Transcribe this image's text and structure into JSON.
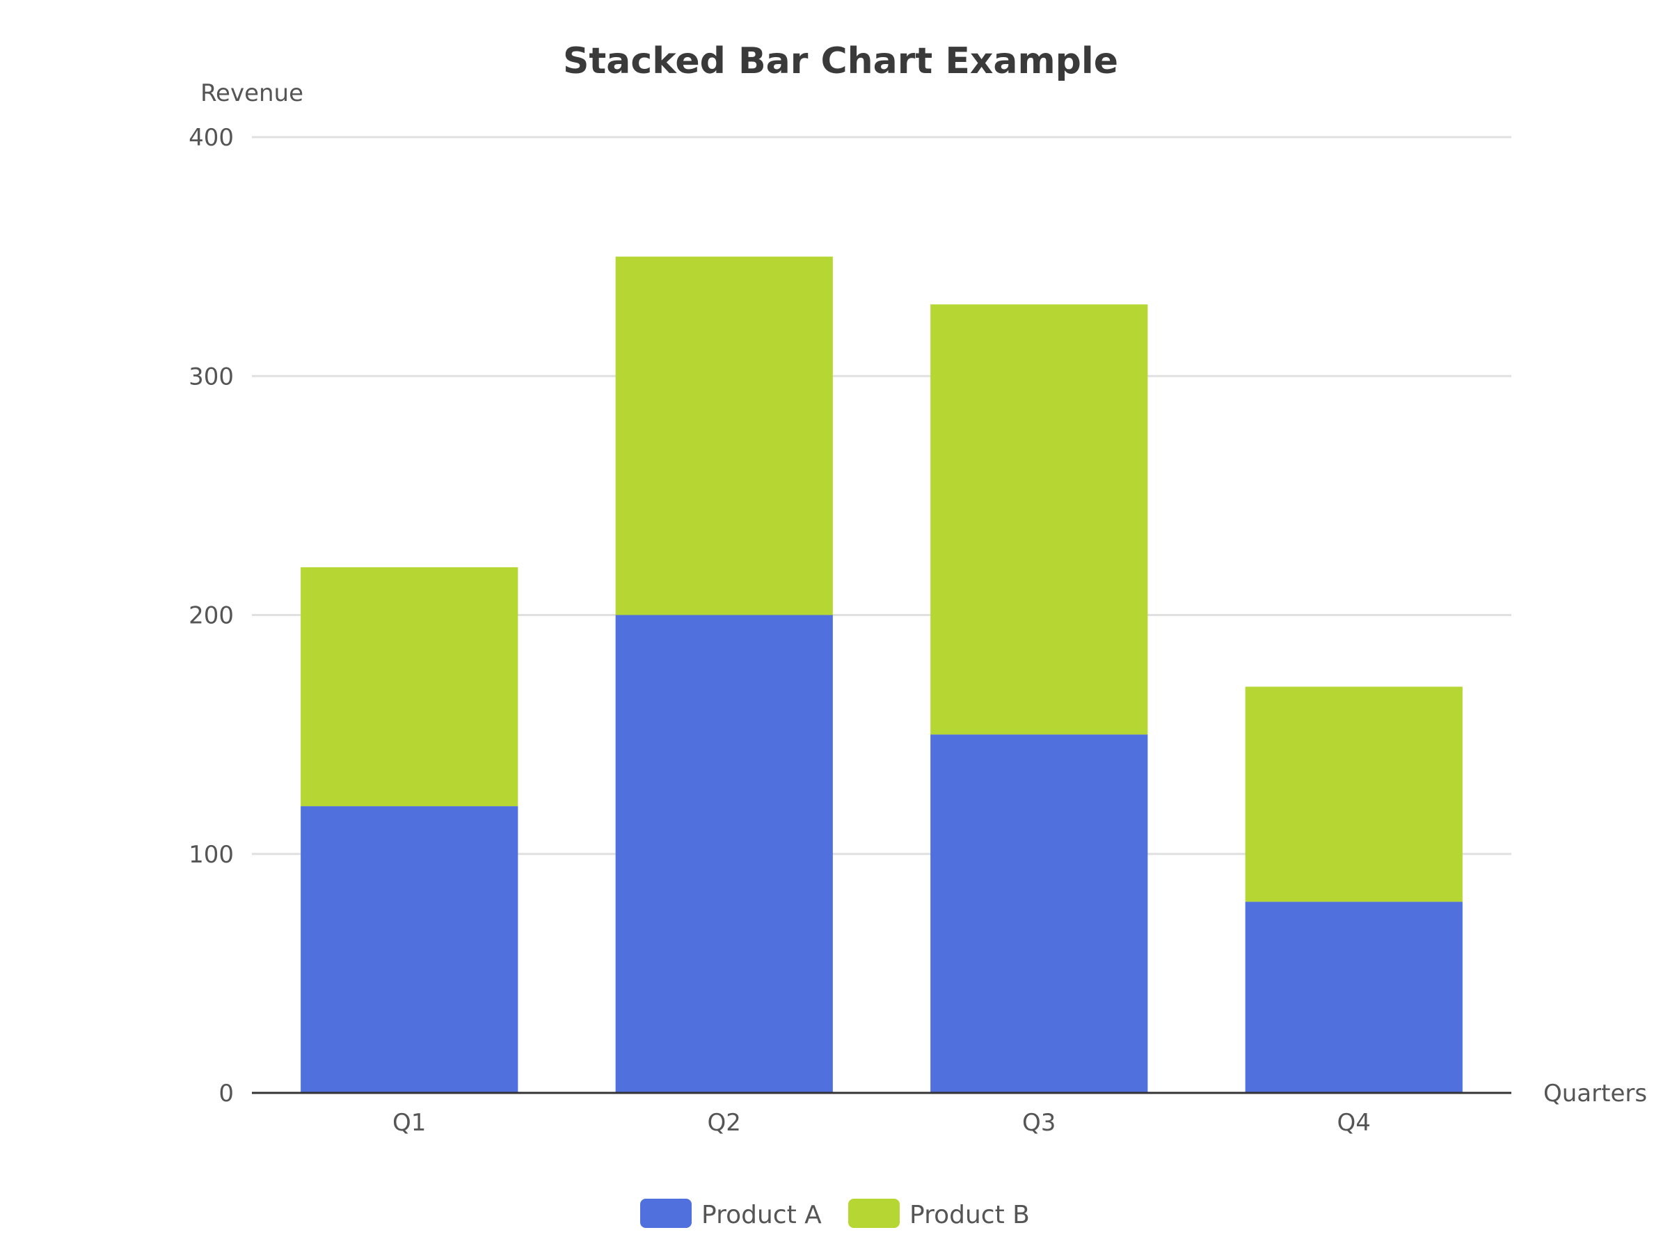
{
  "chart_data": {
    "type": "bar",
    "stacked": true,
    "title": "Stacked Bar Chart Example",
    "xlabel": "Quarters",
    "ylabel": "Revenue",
    "categories": [
      "Q1",
      "Q2",
      "Q3",
      "Q4"
    ],
    "series": [
      {
        "name": "Product A",
        "color": "#5070dd",
        "values": [
          120,
          200,
          150,
          80
        ]
      },
      {
        "name": "Product B",
        "color": "#b6d634",
        "values": [
          100,
          150,
          180,
          90
        ]
      }
    ],
    "ylim": [
      0,
      400
    ],
    "yticks": [
      0,
      100,
      200,
      300,
      400
    ],
    "grid": true,
    "legend": "bottom-center",
    "colors": {
      "grid": "#e0e0e0",
      "axis": "#333333",
      "text": "#555555",
      "title": "#3a3a3a"
    }
  }
}
